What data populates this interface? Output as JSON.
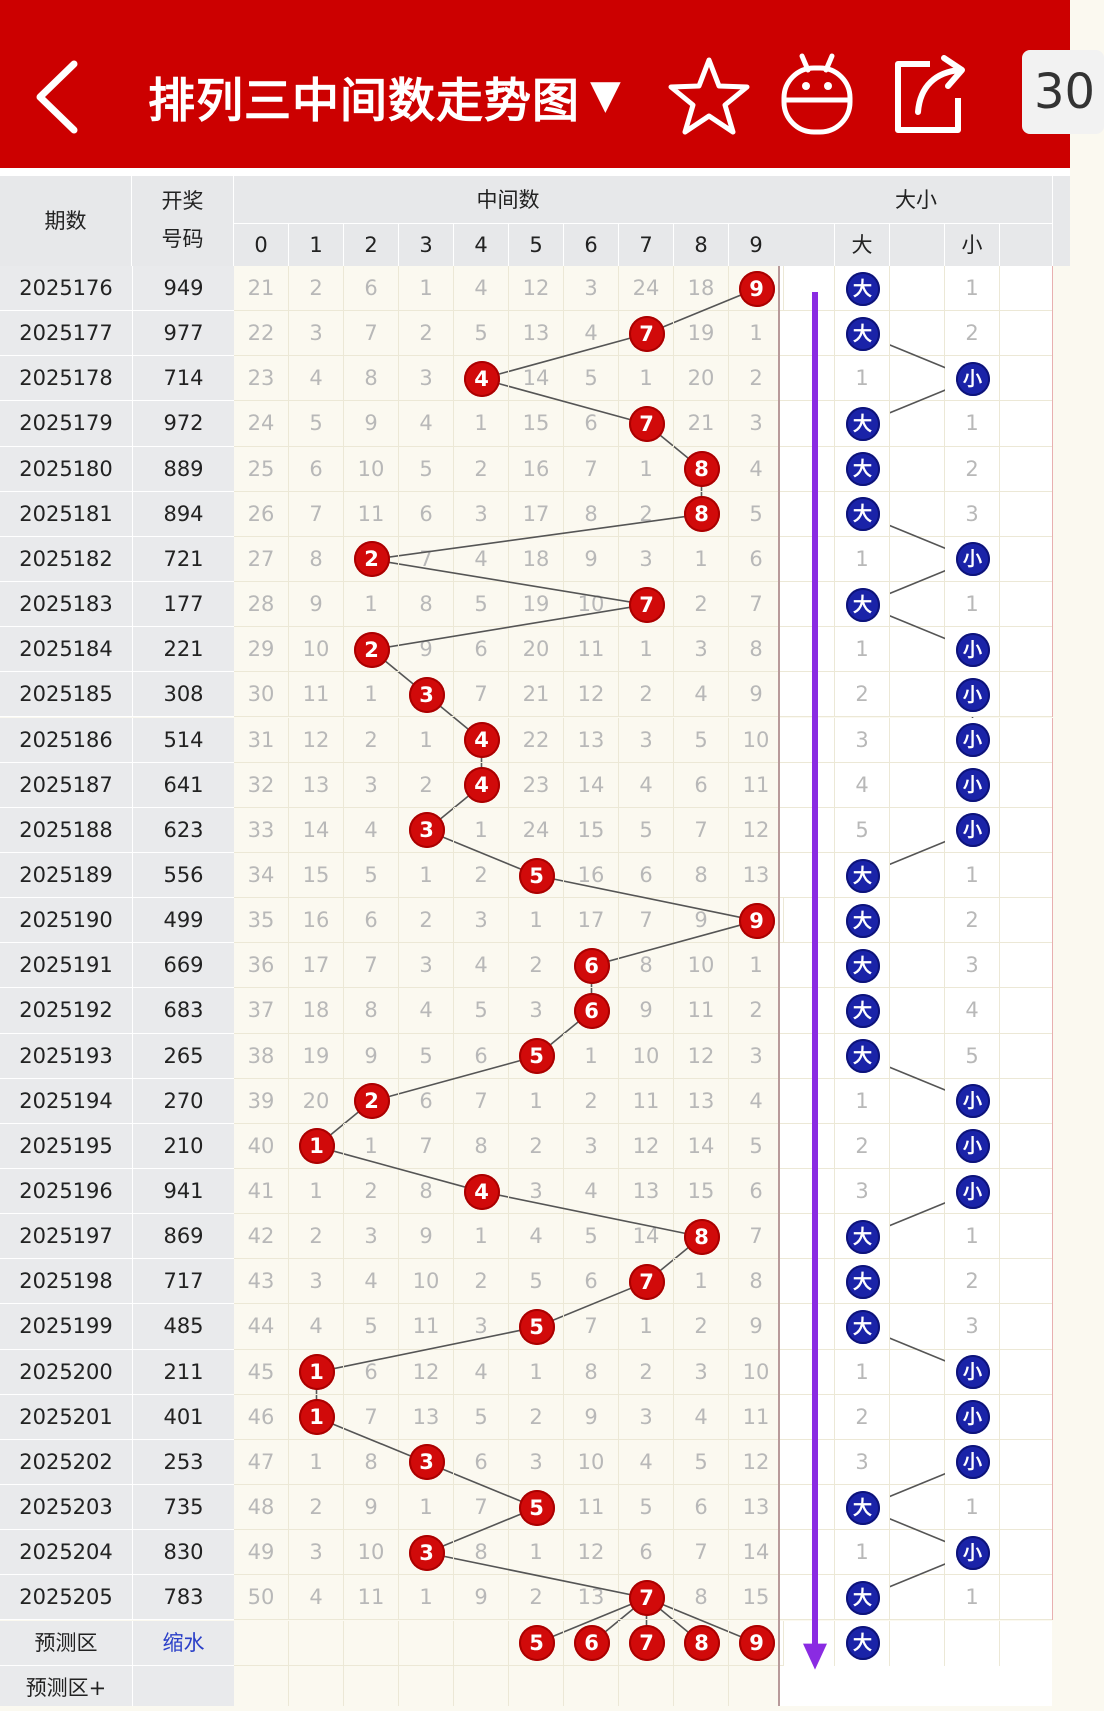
{
  "app": {
    "title": "排列三中间数走势图",
    "title_arrow": "▼",
    "count_box": "30",
    "icons": [
      "back-icon",
      "star-icon",
      "robot-icon",
      "share-icon"
    ],
    "colors": {
      "brand": "#cc0000",
      "hit": "#d10a0a",
      "size_ball": "#1a23a8",
      "trend_arrow": "#8a2be2"
    }
  },
  "header": {
    "period": "期数",
    "prize_line1": "开奖",
    "prize_line2": "号码",
    "middle": "中间数",
    "size": "大小",
    "big": "大",
    "small": "小",
    "digits": [
      "0",
      "1",
      "2",
      "3",
      "4",
      "5",
      "6",
      "7",
      "8",
      "9"
    ]
  },
  "rows": [
    {
      "period": "2025176",
      "number": "949",
      "hit": 9,
      "misses": [
        "21",
        "2",
        "6",
        "1",
        "4",
        "12",
        "3",
        "24",
        "18",
        "9"
      ],
      "size": "大",
      "big_miss": "",
      "small_miss": "1"
    },
    {
      "period": "2025177",
      "number": "977",
      "hit": 7,
      "misses": [
        "22",
        "3",
        "7",
        "2",
        "5",
        "13",
        "4",
        "7",
        "19",
        "1"
      ],
      "size": "大",
      "big_miss": "",
      "small_miss": "2"
    },
    {
      "period": "2025178",
      "number": "714",
      "hit": 4,
      "misses": [
        "23",
        "4",
        "8",
        "3",
        "4",
        "14",
        "5",
        "1",
        "20",
        "2"
      ],
      "size": "小",
      "big_miss": "1",
      "small_miss": ""
    },
    {
      "period": "2025179",
      "number": "972",
      "hit": 7,
      "misses": [
        "24",
        "5",
        "9",
        "4",
        "1",
        "15",
        "6",
        "7",
        "21",
        "3"
      ],
      "size": "大",
      "big_miss": "",
      "small_miss": "1"
    },
    {
      "period": "2025180",
      "number": "889",
      "hit": 8,
      "misses": [
        "25",
        "6",
        "10",
        "5",
        "2",
        "16",
        "7",
        "1",
        "8",
        "4"
      ],
      "size": "大",
      "big_miss": "",
      "small_miss": "2"
    },
    {
      "period": "2025181",
      "number": "894",
      "hit": 8,
      "misses": [
        "26",
        "7",
        "11",
        "6",
        "3",
        "17",
        "8",
        "2",
        "8",
        "5"
      ],
      "size": "大",
      "big_miss": "",
      "small_miss": "3"
    },
    {
      "period": "2025182",
      "number": "721",
      "hit": 2,
      "misses": [
        "27",
        "8",
        "2",
        "7",
        "4",
        "18",
        "9",
        "3",
        "1",
        "6"
      ],
      "size": "小",
      "big_miss": "1",
      "small_miss": ""
    },
    {
      "period": "2025183",
      "number": "177",
      "hit": 7,
      "misses": [
        "28",
        "9",
        "1",
        "8",
        "5",
        "19",
        "10",
        "7",
        "2",
        "7"
      ],
      "size": "大",
      "big_miss": "",
      "small_miss": "1"
    },
    {
      "period": "2025184",
      "number": "221",
      "hit": 2,
      "misses": [
        "29",
        "10",
        "2",
        "9",
        "6",
        "20",
        "11",
        "1",
        "3",
        "8"
      ],
      "size": "小",
      "big_miss": "1",
      "small_miss": ""
    },
    {
      "period": "2025185",
      "number": "308",
      "hit": 3,
      "misses": [
        "30",
        "11",
        "1",
        "3",
        "7",
        "21",
        "12",
        "2",
        "4",
        "9"
      ],
      "size": "小",
      "big_miss": "2",
      "small_miss": ""
    },
    {
      "period": "2025186",
      "number": "514",
      "hit": 4,
      "misses": [
        "31",
        "12",
        "2",
        "1",
        "4",
        "22",
        "13",
        "3",
        "5",
        "10"
      ],
      "size": "小",
      "big_miss": "3",
      "small_miss": ""
    },
    {
      "period": "2025187",
      "number": "641",
      "hit": 4,
      "misses": [
        "32",
        "13",
        "3",
        "2",
        "4",
        "23",
        "14",
        "4",
        "6",
        "11"
      ],
      "size": "小",
      "big_miss": "4",
      "small_miss": ""
    },
    {
      "period": "2025188",
      "number": "623",
      "hit": 3,
      "misses": [
        "33",
        "14",
        "4",
        "3",
        "1",
        "24",
        "15",
        "5",
        "7",
        "12"
      ],
      "size": "小",
      "big_miss": "5",
      "small_miss": ""
    },
    {
      "period": "2025189",
      "number": "556",
      "hit": 5,
      "misses": [
        "34",
        "15",
        "5",
        "1",
        "2",
        "5",
        "16",
        "6",
        "8",
        "13"
      ],
      "size": "大",
      "big_miss": "",
      "small_miss": "1"
    },
    {
      "period": "2025190",
      "number": "499",
      "hit": 9,
      "misses": [
        "35",
        "16",
        "6",
        "2",
        "3",
        "1",
        "17",
        "7",
        "9",
        "9"
      ],
      "size": "大",
      "big_miss": "",
      "small_miss": "2"
    },
    {
      "period": "2025191",
      "number": "669",
      "hit": 6,
      "misses": [
        "36",
        "17",
        "7",
        "3",
        "4",
        "2",
        "6",
        "8",
        "10",
        "1"
      ],
      "size": "大",
      "big_miss": "",
      "small_miss": "3"
    },
    {
      "period": "2025192",
      "number": "683",
      "hit": 6,
      "misses": [
        "37",
        "18",
        "8",
        "4",
        "5",
        "3",
        "6",
        "9",
        "11",
        "2"
      ],
      "size": "大",
      "big_miss": "",
      "small_miss": "4"
    },
    {
      "period": "2025193",
      "number": "265",
      "hit": 5,
      "misses": [
        "38",
        "19",
        "9",
        "5",
        "6",
        "5",
        "1",
        "10",
        "12",
        "3"
      ],
      "size": "大",
      "big_miss": "",
      "small_miss": "5"
    },
    {
      "period": "2025194",
      "number": "270",
      "hit": 2,
      "misses": [
        "39",
        "20",
        "2",
        "6",
        "7",
        "1",
        "2",
        "11",
        "13",
        "4"
      ],
      "size": "小",
      "big_miss": "1",
      "small_miss": ""
    },
    {
      "period": "2025195",
      "number": "210",
      "hit": 1,
      "misses": [
        "40",
        "1",
        "1",
        "7",
        "8",
        "2",
        "3",
        "12",
        "14",
        "5"
      ],
      "size": "小",
      "big_miss": "2",
      "small_miss": ""
    },
    {
      "period": "2025196",
      "number": "941",
      "hit": 4,
      "misses": [
        "41",
        "1",
        "2",
        "8",
        "4",
        "3",
        "4",
        "13",
        "15",
        "6"
      ],
      "size": "小",
      "big_miss": "3",
      "small_miss": ""
    },
    {
      "period": "2025197",
      "number": "869",
      "hit": 8,
      "misses": [
        "42",
        "2",
        "3",
        "9",
        "1",
        "4",
        "5",
        "14",
        "8",
        "7"
      ],
      "size": "大",
      "big_miss": "",
      "small_miss": "1"
    },
    {
      "period": "2025198",
      "number": "717",
      "hit": 7,
      "misses": [
        "43",
        "3",
        "4",
        "10",
        "2",
        "5",
        "6",
        "7",
        "1",
        "8"
      ],
      "size": "大",
      "big_miss": "",
      "small_miss": "2"
    },
    {
      "period": "2025199",
      "number": "485",
      "hit": 5,
      "misses": [
        "44",
        "4",
        "5",
        "11",
        "3",
        "5",
        "7",
        "1",
        "2",
        "9"
      ],
      "size": "大",
      "big_miss": "",
      "small_miss": "3"
    },
    {
      "period": "2025200",
      "number": "211",
      "hit": 1,
      "misses": [
        "45",
        "1",
        "6",
        "12",
        "4",
        "1",
        "8",
        "2",
        "3",
        "10"
      ],
      "size": "小",
      "big_miss": "1",
      "small_miss": ""
    },
    {
      "period": "2025201",
      "number": "401",
      "hit": 1,
      "misses": [
        "46",
        "1",
        "7",
        "13",
        "5",
        "2",
        "9",
        "3",
        "4",
        "11"
      ],
      "size": "小",
      "big_miss": "2",
      "small_miss": ""
    },
    {
      "period": "2025202",
      "number": "253",
      "hit": 3,
      "misses": [
        "47",
        "1",
        "8",
        "3",
        "6",
        "3",
        "10",
        "4",
        "5",
        "12"
      ],
      "size": "小",
      "big_miss": "3",
      "small_miss": ""
    },
    {
      "period": "2025203",
      "number": "735",
      "hit": 5,
      "misses": [
        "48",
        "2",
        "9",
        "1",
        "7",
        "5",
        "11",
        "5",
        "6",
        "13"
      ],
      "size": "大",
      "big_miss": "",
      "small_miss": "1"
    },
    {
      "period": "2025204",
      "number": "830",
      "hit": 3,
      "misses": [
        "49",
        "3",
        "10",
        "3",
        "8",
        "1",
        "12",
        "6",
        "7",
        "14"
      ],
      "size": "小",
      "big_miss": "1",
      "small_miss": ""
    },
    {
      "period": "2025205",
      "number": "783",
      "hit": 7,
      "misses": [
        "50",
        "4",
        "11",
        "1",
        "9",
        "2",
        "13",
        "7",
        "8",
        "15"
      ],
      "size": "大",
      "big_miss": "",
      "small_miss": "1"
    }
  ],
  "forecast": {
    "label": "预测区",
    "tag": "缩水",
    "picks": [
      5,
      6,
      7,
      8,
      9
    ],
    "pick_labels": [
      "5",
      "6",
      "7",
      "8",
      "9"
    ],
    "size": "大"
  },
  "forecast_plus": {
    "label": "预测区+"
  }
}
